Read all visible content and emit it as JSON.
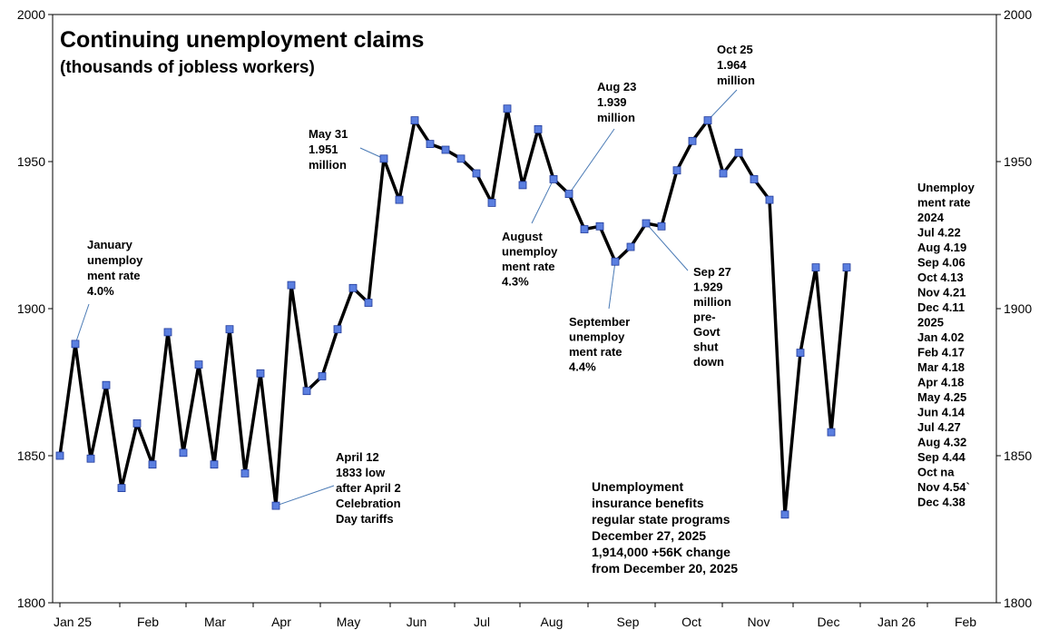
{
  "chart_data": {
    "type": "line",
    "title": "Continuing unemployment claims",
    "subtitle": "(thousands of jobless workers)",
    "ylim": [
      1800,
      2000
    ],
    "yticks": [
      "1800",
      "1850",
      "1900",
      "1950",
      "2000"
    ],
    "months": [
      "Jan 25",
      "Feb",
      "Mar",
      "Apr",
      "May",
      "Jun",
      "Jul",
      "Aug",
      "Sep",
      "Oct",
      "Nov",
      "Dec",
      "Jan 26",
      "Feb"
    ],
    "line_color": "#000000",
    "marker_color": "#5b7fe0",
    "series": [
      {
        "values": [
          1850,
          1888,
          1849,
          1874,
          1839,
          1861,
          1847,
          1892,
          1851,
          1881,
          1847,
          1893,
          1844,
          1878,
          1833,
          1908,
          1872,
          1877,
          1893,
          1907,
          1902,
          1951,
          1937,
          1964,
          1956,
          1954,
          1951,
          1946,
          1936,
          1968,
          1942,
          1961,
          1944,
          1939,
          1927,
          1928,
          1916,
          1921,
          1929,
          1928,
          1947,
          1957,
          1964,
          1946,
          1953,
          1944,
          1937,
          1830,
          1885,
          1914,
          1858,
          1914
        ]
      }
    ],
    "annotations": [
      {
        "id": "jan-rate",
        "lines": [
          "January",
          "unemploy",
          "ment rate",
          "4.0%"
        ],
        "point": 1
      },
      {
        "id": "may31",
        "lines": [
          "May 31",
          "1.951",
          "million"
        ],
        "point": 21
      },
      {
        "id": "aug23",
        "lines": [
          "Aug 23",
          "1.939",
          "million"
        ],
        "point": 33
      },
      {
        "id": "oct25",
        "lines": [
          "Oct 25",
          "1.964",
          "million"
        ],
        "point": 42
      },
      {
        "id": "aug-rate",
        "lines": [
          "August",
          "unemploy",
          "ment rate",
          "4.3%"
        ],
        "point": 32
      },
      {
        "id": "sep-rate",
        "lines": [
          "September",
          "unemploy",
          "ment rate",
          "4.4%"
        ],
        "point": 36
      },
      {
        "id": "sep27",
        "lines": [
          "Sep 27",
          "1.929",
          "million",
          "pre-",
          "Govt",
          "shut",
          "down"
        ],
        "point": 38
      },
      {
        "id": "apr12",
        "lines": [
          "April 12",
          "1833 low",
          "after April 2",
          "Celebration",
          "Day tariffs"
        ],
        "point": 14
      },
      {
        "id": "benefits",
        "lines": [
          "Unemployment",
          "insurance benefits",
          "regular state programs",
          "December 27, 2025",
          "1,914,000  +56K change",
          "from December 20, 2025"
        ]
      }
    ],
    "rate_table": [
      "Unemploy",
      "ment rate",
      "2024",
      "Jul  4.22",
      "Aug 4.19",
      "Sep 4.06",
      "Oct  4.13",
      "Nov 4.21",
      "Dec 4.11",
      "2025",
      "Jan  4.02",
      "Feb  4.17",
      "Mar  4.18",
      "Apr  4.18",
      "May 4.25",
      "Jun  4.14",
      "Jul   4.27",
      "Aug 4.32",
      "Sep 4.44",
      "Oct   na",
      "Nov 4.54`",
      "Dec 4.38"
    ]
  }
}
